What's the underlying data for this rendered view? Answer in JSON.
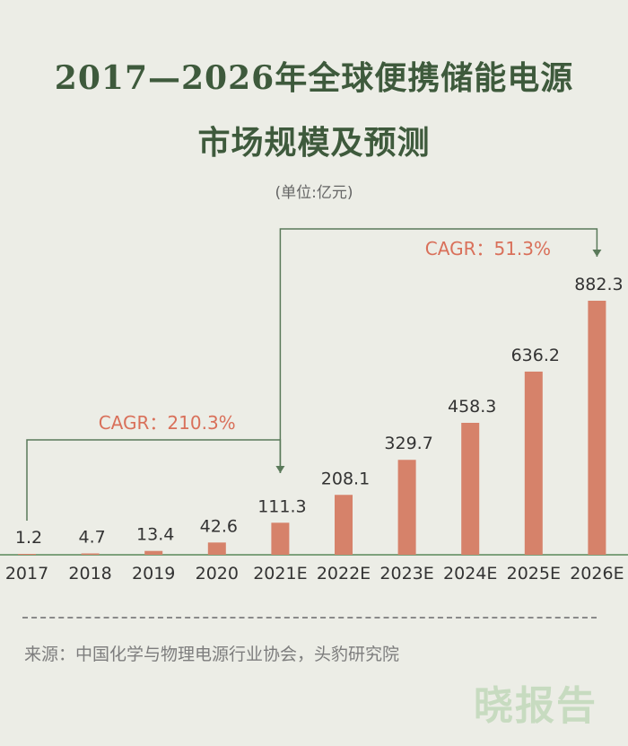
{
  "title_line1": "2017—2026年全球便携储能电源",
  "title_line2": "市场规模及预测",
  "unit_label": "(单位:亿元)",
  "source": "来源：中国化学与物理电源行业协会，头豹研究院",
  "watermark": "晓报告",
  "colors": {
    "bar": "#d6826a",
    "title": "#3e5a3c",
    "axis": "#5a8a5a",
    "bracket": "#5a7a5a",
    "cagr_text": "#d9705a"
  },
  "chart_data": {
    "type": "bar",
    "categories": [
      "2017",
      "2018",
      "2019",
      "2020",
      "2021E",
      "2022E",
      "2023E",
      "2024E",
      "2025E",
      "2026E"
    ],
    "values": [
      1.2,
      4.7,
      13.4,
      42.6,
      111.3,
      208.1,
      329.7,
      458.3,
      636.2,
      882.3
    ],
    "value_labels": [
      "1.2",
      "4.7",
      "13.4",
      "42.6",
      "111.3",
      "208.1",
      "329.7",
      "458.3",
      "636.2",
      "882.3"
    ],
    "ylim": [
      0,
      882.3
    ],
    "annotations": [
      {
        "text": "CAGR：210.3%",
        "from": "2017",
        "to": "2021E"
      },
      {
        "text": "CAGR：51.3%",
        "from": "2021E",
        "to": "2026E"
      }
    ],
    "grid": false,
    "legend": "none"
  }
}
